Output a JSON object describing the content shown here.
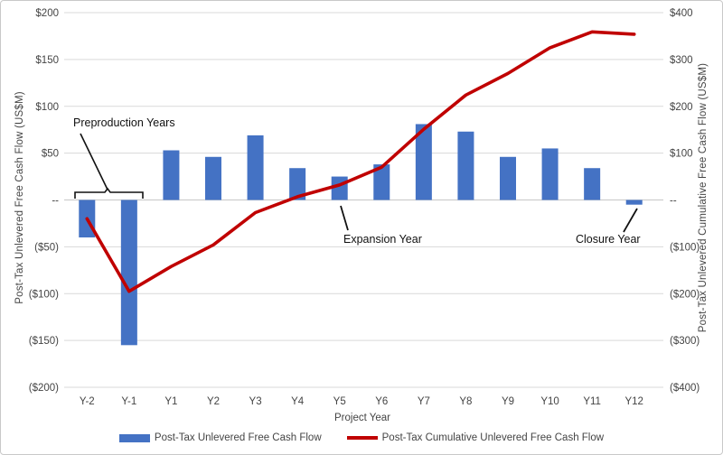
{
  "chart_data": {
    "type": "bar",
    "combo": "bar+line",
    "title": "",
    "categories": [
      "Y-2",
      "Y-1",
      "Y1",
      "Y2",
      "Y3",
      "Y4",
      "Y5",
      "Y6",
      "Y7",
      "Y8",
      "Y9",
      "Y10",
      "Y11",
      "Y12"
    ],
    "series": [
      {
        "name": "Post-Tax Unlevered Free Cash Flow",
        "type": "bar",
        "axis": "left",
        "color": "#4472C4",
        "values": [
          -40,
          -155,
          53,
          46,
          69,
          34,
          25,
          38,
          81,
          73,
          46,
          55,
          34,
          -5
        ]
      },
      {
        "name": "Post-Tax Cumulative Unlevered Free Cash Flow",
        "type": "line",
        "axis": "right",
        "color": "#C00000",
        "values": [
          -40,
          -195,
          -142,
          -96,
          -27,
          7,
          32,
          70,
          151,
          224,
          270,
          325,
          359,
          354
        ]
      }
    ],
    "xlabel": "Project Year",
    "left_axis": {
      "label": "Post-Tax Unlevered Free Cash Flow (US$M)",
      "min": -200,
      "max": 200,
      "tick_step": 50,
      "tick_labels": [
        "$200",
        "$150",
        "$100",
        "$50",
        "--",
        "($50)",
        "($100)",
        "($150)",
        "($200)"
      ]
    },
    "right_axis": {
      "label": "Post-Tax Unlevered Cumulative Free Cash Flow (US$M)",
      "min": -400,
      "max": 400,
      "tick_step": 100,
      "tick_labels": [
        "$400",
        "$300",
        "$200",
        "$100",
        "--",
        "($100)",
        "($200)",
        "($300)",
        "($400)"
      ]
    },
    "annotations": [
      {
        "text": "Preproduction Years",
        "target": "Y-2 and Y-1"
      },
      {
        "text": "Expansion Year",
        "target": "Y5"
      },
      {
        "text": "Closure Year",
        "target": "Y12"
      }
    ],
    "legend_position": "bottom",
    "grid": true,
    "colors": {
      "gridline": "#D9D9D9",
      "zero_line": "#C6C6C6",
      "tick_text": "#444444",
      "annotation_text": "#111111"
    }
  }
}
